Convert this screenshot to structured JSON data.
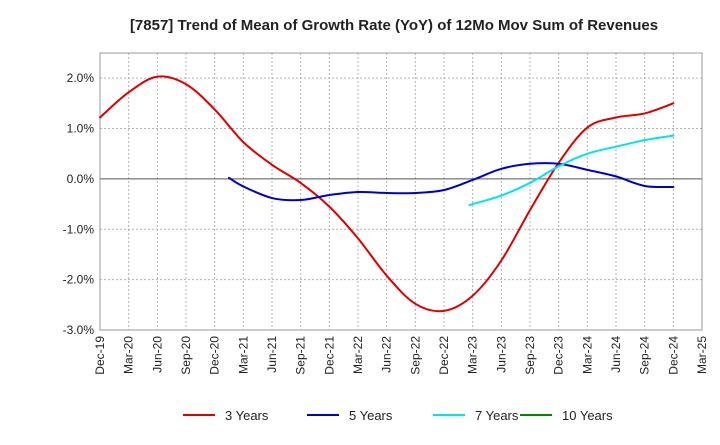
{
  "chart_data": {
    "type": "line",
    "title": "[7857]  Trend of Mean of Growth Rate (YoY) of 12Mo Mov Sum of Revenues",
    "xlabel": "",
    "ylabel": "",
    "ylim": [
      -3.0,
      2.5
    ],
    "yticks": [
      2.0,
      1.0,
      0.0,
      -1.0,
      -2.0,
      -3.0
    ],
    "ytick_labels": [
      "2.0%",
      "1.0%",
      "0.0%",
      "-1.0%",
      "-2.0%",
      "-3.0%"
    ],
    "xticks": [
      "Dec-19",
      "Mar-20",
      "Jun-20",
      "Sep-20",
      "Dec-20",
      "Mar-21",
      "Jun-21",
      "Sep-21",
      "Dec-21",
      "Mar-22",
      "Jun-22",
      "Sep-22",
      "Dec-22",
      "Mar-23",
      "Jun-23",
      "Sep-23",
      "Dec-23",
      "Mar-24",
      "Jun-24",
      "Sep-24",
      "Dec-24",
      "Mar-25"
    ],
    "grid": true,
    "legend_position": "bottom",
    "series": [
      {
        "name": "3 Years",
        "color": "#dd0000",
        "x": [
          0,
          1,
          2,
          3,
          4,
          5,
          6,
          7,
          8,
          9,
          10,
          11,
          12,
          13,
          14,
          15,
          16,
          17,
          18,
          19,
          20
        ],
        "values": [
          1.22,
          1.72,
          2.03,
          1.88,
          1.38,
          0.73,
          0.28,
          -0.08,
          -0.55,
          -1.18,
          -1.92,
          -2.48,
          -2.62,
          -2.32,
          -1.62,
          -0.62,
          0.32,
          1.02,
          1.22,
          1.3,
          1.5
        ]
      },
      {
        "name": "5 Years",
        "color": "#0000cc",
        "x": [
          4.5,
          5,
          6,
          7,
          8,
          9,
          10,
          11,
          12,
          13,
          14,
          15,
          16,
          17,
          18,
          19,
          20
        ],
        "values": [
          0.02,
          -0.15,
          -0.38,
          -0.42,
          -0.32,
          -0.26,
          -0.28,
          -0.28,
          -0.22,
          -0.02,
          0.2,
          0.3,
          0.3,
          0.18,
          0.05,
          -0.14,
          -0.16
        ]
      },
      {
        "name": "7 Years",
        "color": "#00e5e5",
        "x": [
          12.9,
          13,
          14,
          15,
          16,
          17,
          18,
          19,
          20
        ],
        "values": [
          -0.52,
          -0.5,
          -0.33,
          -0.08,
          0.25,
          0.5,
          0.64,
          0.77,
          0.86
        ]
      },
      {
        "name": "10 Years",
        "color": "#008800",
        "x": [],
        "values": []
      }
    ]
  }
}
